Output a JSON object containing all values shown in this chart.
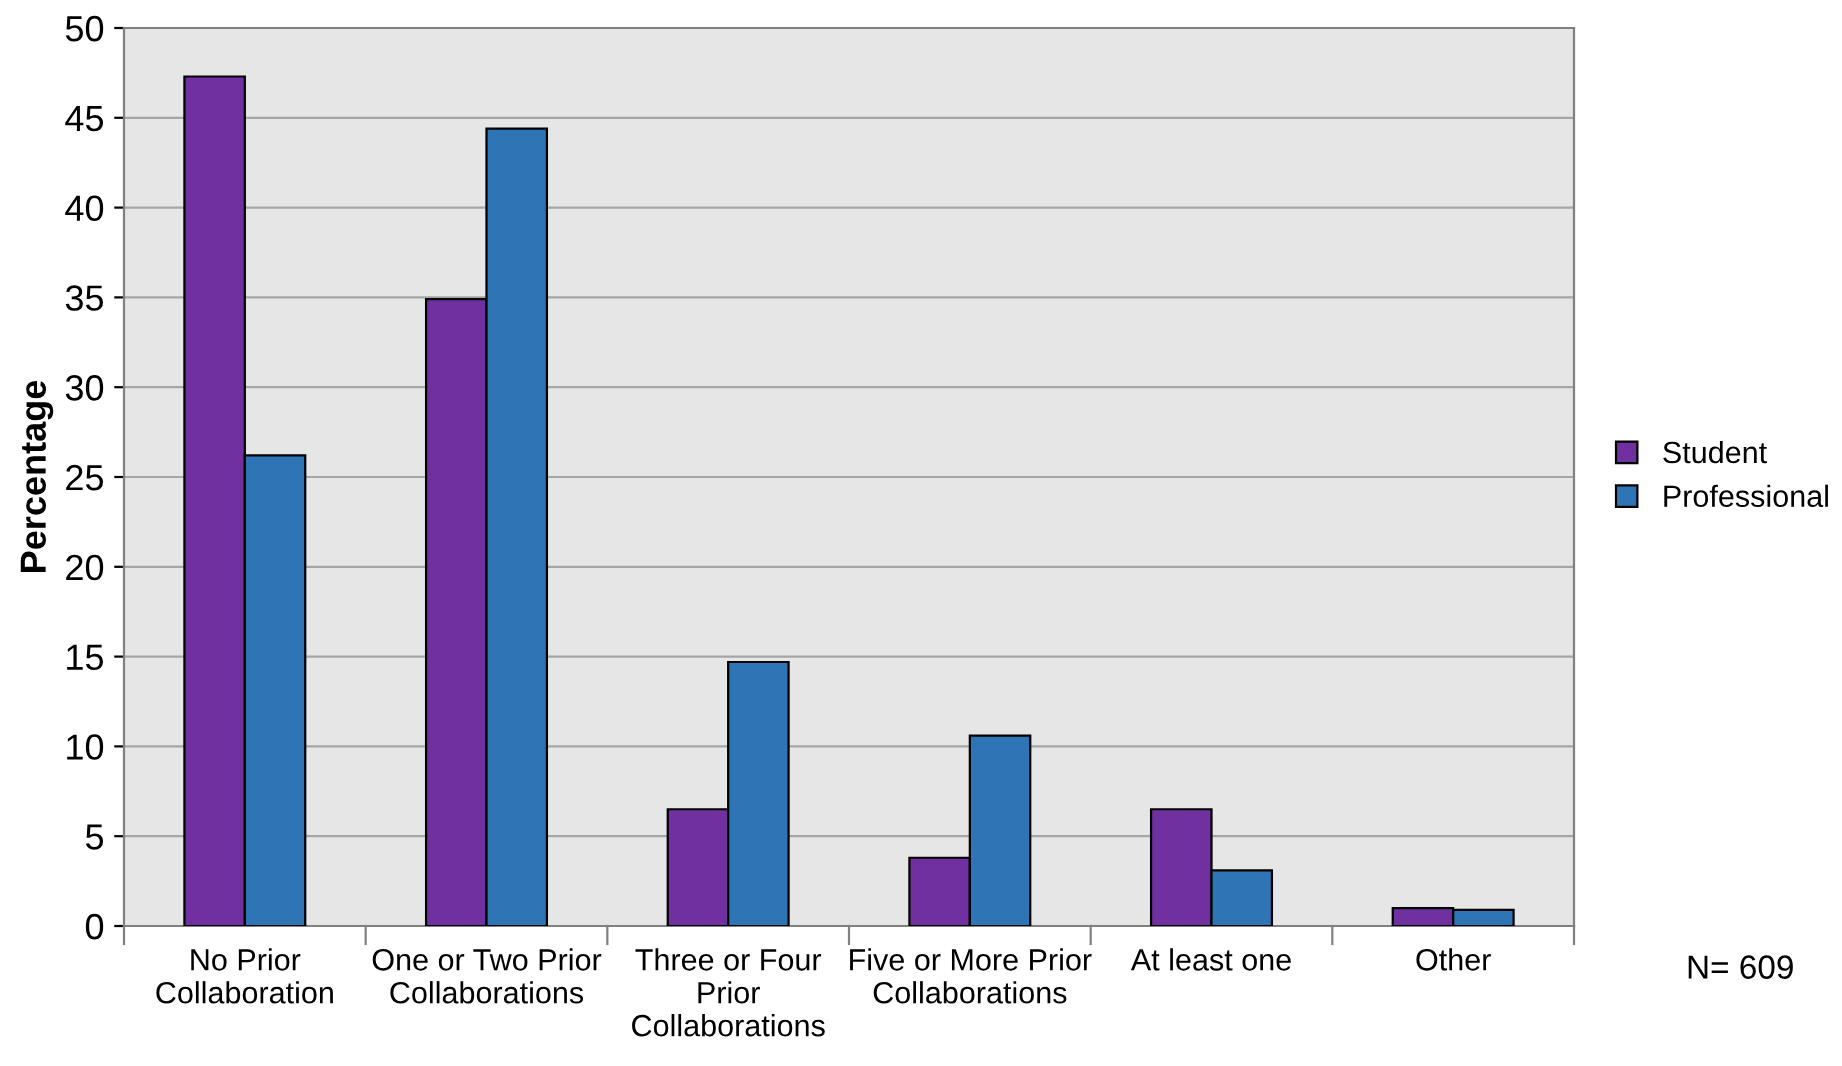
{
  "chart_data": {
    "type": "bar",
    "ylabel": "Percentage",
    "categories": [
      "No Prior\nCollaboration",
      "One or Two Prior\nCollaborations",
      "Three or Four\nPrior\nCollaborations",
      "Five or More Prior\nCollaborations",
      "At least one",
      "Other"
    ],
    "series": [
      {
        "name": "Student",
        "color": "#7030a0",
        "values": [
          47.3,
          34.9,
          6.5,
          3.8,
          6.5,
          1.0
        ]
      },
      {
        "name": "Professional",
        "color": "#2e75b6",
        "values": [
          26.2,
          44.4,
          14.7,
          10.6,
          3.1,
          0.9
        ]
      }
    ],
    "ylim": [
      0,
      50
    ],
    "yticks": [
      0,
      5,
      10,
      15,
      20,
      25,
      30,
      35,
      40,
      45,
      50
    ],
    "grid": "y",
    "legend": "right",
    "annotations": [
      "N= 609"
    ]
  }
}
